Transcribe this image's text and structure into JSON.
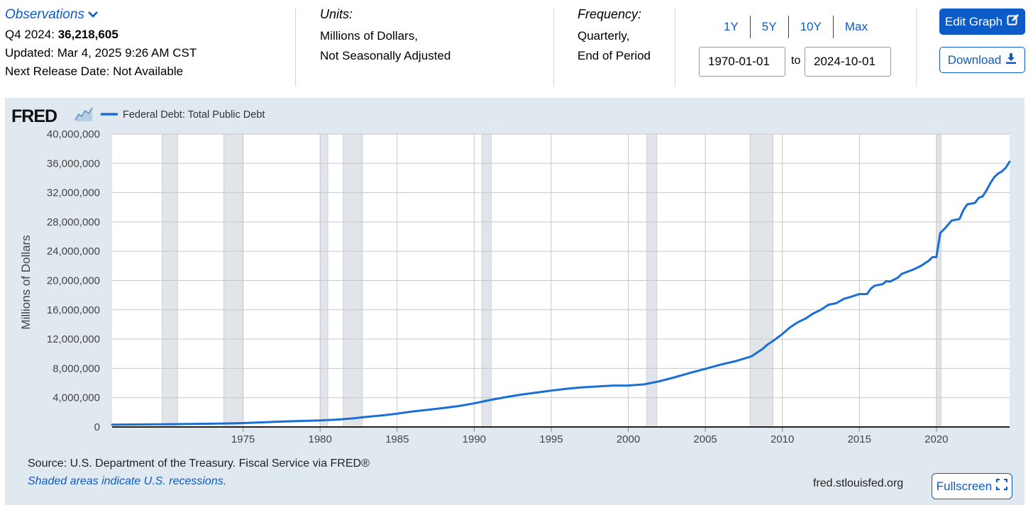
{
  "header": {
    "observations_label": "Observations",
    "latest_period": "Q4 2024:",
    "latest_value": "36,218,605",
    "updated": "Updated: Mar 4, 2025 9:26 AM CST",
    "next_release": "Next Release Date: Not Available",
    "units_label": "Units:",
    "units_line1": "Millions of Dollars,",
    "units_line2": "Not Seasonally Adjusted",
    "frequency_label": "Frequency:",
    "frequency_line1": "Quarterly,",
    "frequency_line2": "End of Period",
    "range_buttons": [
      "1Y",
      "5Y",
      "10Y",
      "Max"
    ],
    "start_date": "1970-01-01",
    "to_label": "to",
    "end_date": "2024-10-01",
    "edit_graph_label": "Edit Graph",
    "download_label": "Download"
  },
  "footer": {
    "source": "Source: U.S. Department of the Treasury. Fiscal Service via FRED®",
    "shaded_note": "Shaded areas indicate U.S. recessions.",
    "site": "fred.stlouisfed.org",
    "fullscreen_label": "Fullscreen"
  },
  "logo_text": "FRED",
  "colors": {
    "series": "#1a6fd6",
    "accent": "#0d5bc6",
    "panel_bg": "#e1e9f0",
    "recession": "#e1e5e9"
  },
  "chart_data": {
    "type": "line",
    "title": "",
    "xlabel": "",
    "ylabel": "Millions of Dollars",
    "xlim": [
      1966.5,
      2024.75
    ],
    "ylim": [
      0,
      40000000
    ],
    "y_ticks": [
      0,
      4000000,
      8000000,
      12000000,
      16000000,
      20000000,
      24000000,
      28000000,
      32000000,
      36000000,
      40000000
    ],
    "y_tick_labels": [
      "0",
      "4,000,000",
      "8,000,000",
      "12,000,000",
      "16,000,000",
      "20,000,000",
      "24,000,000",
      "28,000,000",
      "32,000,000",
      "36,000,000",
      "40,000,000"
    ],
    "x_ticks": [
      1975,
      1980,
      1985,
      1990,
      1995,
      2000,
      2005,
      2010,
      2015,
      2020
    ],
    "x_tick_labels": [
      "1975",
      "1980",
      "1985",
      "1990",
      "1995",
      "2000",
      "2005",
      "2010",
      "2015",
      "2020"
    ],
    "grid": true,
    "recessions": [
      [
        1969.75,
        1970.75
      ],
      [
        1973.75,
        1975.0
      ],
      [
        1980.0,
        1980.5
      ],
      [
        1981.5,
        1982.75
      ],
      [
        1990.5,
        1991.1
      ],
      [
        2001.2,
        2001.85
      ],
      [
        2007.9,
        2009.4
      ],
      [
        2020.0,
        2020.3
      ]
    ],
    "series": [
      {
        "name": "Federal Debt: Total Public Debt",
        "x": [
          1966.5,
          1970.0,
          1972.0,
          1974.0,
          1975.0,
          1976.0,
          1977.0,
          1978.0,
          1979.0,
          1980.0,
          1981.0,
          1982.0,
          1983.0,
          1984.0,
          1985.0,
          1986.0,
          1987.0,
          1988.0,
          1989.0,
          1990.0,
          1991.0,
          1992.0,
          1993.0,
          1994.0,
          1995.0,
          1996.0,
          1997.0,
          1998.0,
          1999.0,
          2000.0,
          2001.0,
          2002.0,
          2003.0,
          2004.0,
          2005.0,
          2006.0,
          2007.0,
          2008.0,
          2008.75,
          2009.0,
          2009.5,
          2010.0,
          2010.5,
          2011.0,
          2011.5,
          2012.0,
          2012.5,
          2013.0,
          2013.5,
          2014.0,
          2014.5,
          2015.0,
          2015.5,
          2015.75,
          2016.0,
          2016.5,
          2016.75,
          2017.0,
          2017.5,
          2017.75,
          2018.0,
          2018.5,
          2019.0,
          2019.5,
          2019.75,
          2020.0,
          2020.25,
          2020.5,
          2021.0,
          2021.5,
          2021.75,
          2022.0,
          2022.5,
          2022.75,
          2023.0,
          2023.25,
          2023.5,
          2023.75,
          2024.0,
          2024.25,
          2024.5,
          2024.75
        ],
        "values": [
          320000,
          380000,
          430000,
          480000,
          530000,
          620000,
          700000,
          770000,
          830000,
          900000,
          1000000,
          1150000,
          1380000,
          1570000,
          1820000,
          2120000,
          2350000,
          2600000,
          2860000,
          3230000,
          3670000,
          4060000,
          4410000,
          4690000,
          4970000,
          5220000,
          5410000,
          5530000,
          5660000,
          5670000,
          5810000,
          6230000,
          6780000,
          7380000,
          7930000,
          8510000,
          9010000,
          9650000,
          10700000,
          11200000,
          11900000,
          12700000,
          13600000,
          14300000,
          14800000,
          15500000,
          16000000,
          16700000,
          16900000,
          17500000,
          17800000,
          18150000,
          18150000,
          18900000,
          19300000,
          19500000,
          19900000,
          19850000,
          20400000,
          20900000,
          21100000,
          21500000,
          22000000,
          22700000,
          23200000,
          23200000,
          26500000,
          27000000,
          28200000,
          28400000,
          29600000,
          30400000,
          30600000,
          31300000,
          31500000,
          32300000,
          33300000,
          34100000,
          34600000,
          34900000,
          35400000,
          36218605
        ]
      }
    ]
  }
}
